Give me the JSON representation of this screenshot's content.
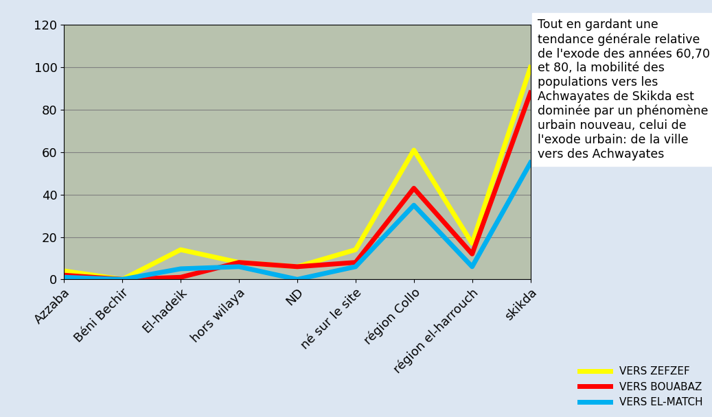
{
  "chart_data": {
    "type": "line",
    "categories": [
      "Azzaba",
      "Béni Bechir",
      "El-hadeik",
      "hors wilaya",
      "ND",
      "né sur le site",
      "région Collo",
      "région el-harrouch",
      "skikda"
    ],
    "series": [
      {
        "name": "VERS ZEFZEF",
        "color": "#ffff00",
        "values": [
          4,
          0,
          14,
          8,
          6,
          14,
          61,
          17,
          100
        ]
      },
      {
        "name": "VERS BOUABAZ",
        "color": "#ff0000",
        "values": [
          2,
          0,
          1,
          8,
          6,
          8,
          43,
          12,
          88
        ]
      },
      {
        "name": "VERS EL-MATCH",
        "color": "#00b0f0",
        "values": [
          1,
          0,
          5,
          6,
          0,
          6,
          35,
          6,
          55
        ]
      }
    ],
    "ylim": [
      0,
      120
    ],
    "yticks": [
      0,
      20,
      40,
      60,
      80,
      100,
      120
    ],
    "grid": true,
    "legend": "lower right",
    "annotations": [
      "Tout en gardant une tendance générale relative de l'exode des années 60,70 et 80, la mobilité des populations vers les Achwayates de Skikda est dominée par un phénomène urbain nouveau, celui de l'exode urbain: de la ville vers des Achwayates"
    ]
  }
}
